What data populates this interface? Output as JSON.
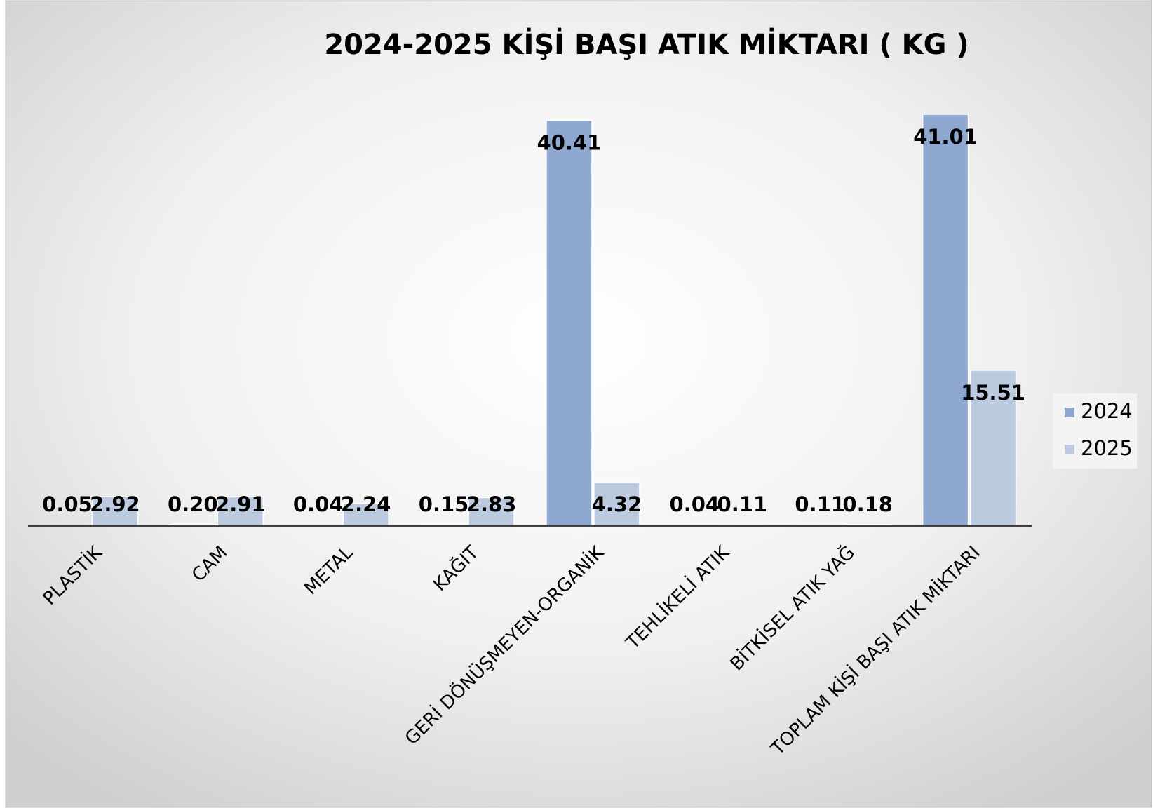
{
  "chart_data": {
    "type": "bar",
    "title": "2024-2025 KİŞİ BAŞI ATIK MİKTARI ( KG )",
    "categories": [
      "PLASTİK",
      "CAM",
      "METAL",
      "KAĞIT",
      "GERİ DÖNÜŞMEYEN-ORGANİK",
      "TEHLİKELİ ATIK",
      "BİTKİSEL ATIK YAĞ",
      "TOPLAM KİŞİ BAŞI ATIK MİKTARI"
    ],
    "series": [
      {
        "name": "2024",
        "color": "#8fa8d0",
        "values": [
          0.05,
          0.2,
          0.04,
          0.15,
          40.41,
          0.04,
          0.11,
          41.01
        ],
        "value_labels": [
          "0.05",
          "0.20",
          "0.04",
          "0.15",
          "40.41",
          "0.04",
          "0.11",
          "41.01"
        ]
      },
      {
        "name": "2025",
        "color": "#bccadf",
        "values": [
          2.92,
          2.91,
          2.24,
          2.83,
          4.32,
          0.11,
          0.18,
          15.51
        ],
        "value_labels": [
          "2.92",
          "2.91",
          "2.24",
          "2.83",
          "4.32",
          "0.11",
          "0.18",
          "15.51"
        ]
      }
    ],
    "legend": "right"
  }
}
